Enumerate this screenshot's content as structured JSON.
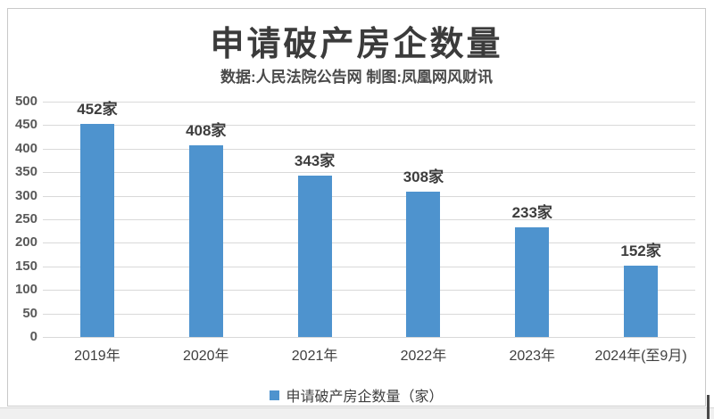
{
  "header": {
    "title": "申请破产房企数量",
    "subtitle": "数据:人民法院公告网 制图:凤凰网风财讯"
  },
  "chart_data": {
    "type": "bar",
    "title": "申请破产房企数量",
    "subtitle": "数据:人民法院公告网 制图:凤凰网风财讯",
    "categories": [
      "2019年",
      "2020年",
      "2021年",
      "2022年",
      "2023年",
      "2024年(至9月)"
    ],
    "values": [
      452,
      408,
      343,
      308,
      233,
      152
    ],
    "data_labels": [
      "452家",
      "408家",
      "343家",
      "308家",
      "233家",
      "152家"
    ],
    "xlabel": "",
    "ylabel": "",
    "ylim": [
      0,
      500
    ],
    "yticks": [
      500,
      450,
      400,
      350,
      300,
      250,
      200,
      150,
      100,
      50,
      0
    ],
    "grid": true,
    "legend": {
      "label": "申请破产房企数量（家）",
      "position": "bottom"
    },
    "colors": {
      "bar": "#4e93ce",
      "gridline": "#d9d9d9",
      "title_text": "#3b3b3b",
      "axis_text": "#595959",
      "border": "#c9c9c9"
    }
  }
}
